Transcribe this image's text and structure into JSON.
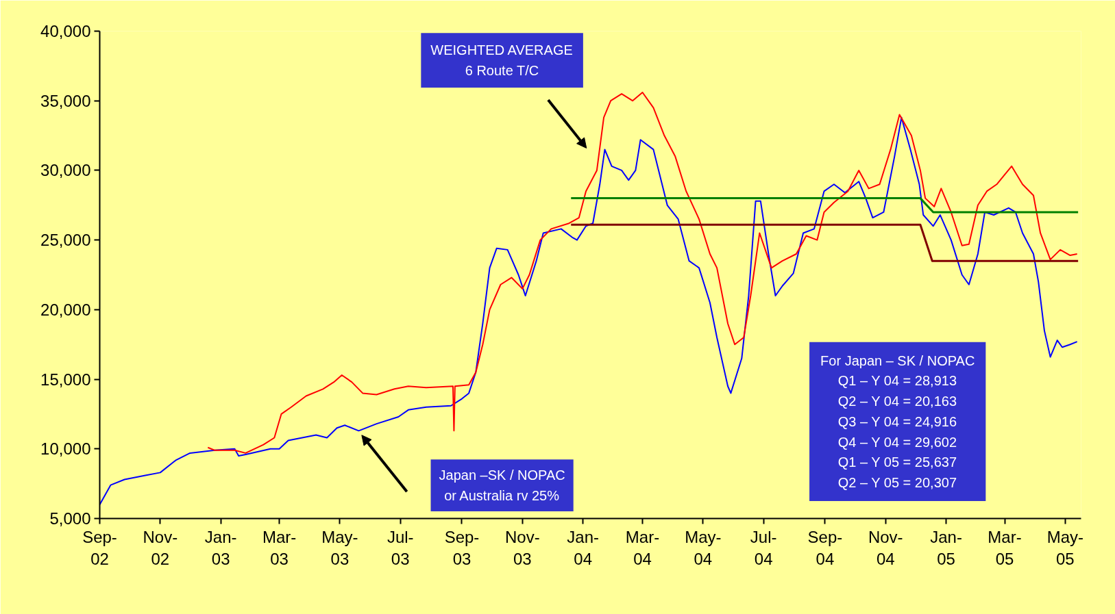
{
  "chart_data": {
    "type": "line",
    "xlim": [
      "2002-09-01",
      "2005-05-17"
    ],
    "ylim": [
      5000,
      40000
    ],
    "xticks": [
      {
        "value": "2002-09-01",
        "label": "Sep-\n02"
      },
      {
        "value": "2002-11-01",
        "label": "Nov-\n02"
      },
      {
        "value": "2003-01-01",
        "label": "Jan-\n03"
      },
      {
        "value": "2003-03-01",
        "label": "Mar-\n03"
      },
      {
        "value": "2003-05-01",
        "label": "May-\n03"
      },
      {
        "value": "2003-07-01",
        "label": "Jul-\n03"
      },
      {
        "value": "2003-09-01",
        "label": "Sep-\n03"
      },
      {
        "value": "2003-11-01",
        "label": "Nov-\n03"
      },
      {
        "value": "2004-01-01",
        "label": "Jan-\n04"
      },
      {
        "value": "2004-03-01",
        "label": "Mar-\n04"
      },
      {
        "value": "2004-05-01",
        "label": "May-\n04"
      },
      {
        "value": "2004-07-01",
        "label": "Jul-\n04"
      },
      {
        "value": "2004-09-01",
        "label": "Sep-\n04"
      },
      {
        "value": "2004-11-01",
        "label": "Nov-\n04"
      },
      {
        "value": "2005-01-01",
        "label": "Jan-\n05"
      },
      {
        "value": "2005-03-01",
        "label": "Mar-\n05"
      },
      {
        "value": "2005-05-01",
        "label": "May-\n05"
      }
    ],
    "yticks": [
      {
        "value": 5000,
        "label": "5,000"
      },
      {
        "value": 10000,
        "label": "10,000"
      },
      {
        "value": 15000,
        "label": "15,000"
      },
      {
        "value": 20000,
        "label": "20,000"
      },
      {
        "value": 25000,
        "label": "25,000"
      },
      {
        "value": 30000,
        "label": "30,000"
      },
      {
        "value": 35000,
        "label": "35,000"
      },
      {
        "value": 40000,
        "label": "40,000"
      }
    ],
    "grid": false,
    "marker": "none",
    "line_style": "solid",
    "series": [
      {
        "color": "#0000ff",
        "x": [
          "2002-09-01",
          "2002-09-12",
          "2002-09-26",
          "2002-10-17",
          "2002-11-01",
          "2002-11-17",
          "2002-12-01",
          "2002-12-26",
          "2003-01-15",
          "2003-01-19",
          "2003-01-26",
          "2003-02-20",
          "2003-03-01",
          "2003-03-10",
          "2003-03-24",
          "2003-04-07",
          "2003-04-18",
          "2003-04-28",
          "2003-05-06",
          "2003-05-20",
          "2003-06-07",
          "2003-06-29",
          "2003-07-09",
          "2003-07-27",
          "2003-08-21",
          "2003-09-01",
          "2003-09-08",
          "2003-09-15",
          "2003-09-22",
          "2003-09-29",
          "2003-10-06",
          "2003-10-17",
          "2003-10-28",
          "2003-11-04",
          "2003-11-15",
          "2003-11-22",
          "2003-12-10",
          "2003-12-21",
          "2003-12-26",
          "2004-01-04",
          "2004-01-11",
          "2004-01-18",
          "2004-01-23",
          "2004-01-30",
          "2004-02-09",
          "2004-02-16",
          "2004-02-23",
          "2004-02-28",
          "2004-03-12",
          "2004-03-26",
          "2004-04-06",
          "2004-04-17",
          "2004-04-27",
          "2004-05-08",
          "2004-05-15",
          "2004-05-26",
          "2004-05-29",
          "2004-06-09",
          "2004-06-16",
          "2004-06-23",
          "2004-06-28",
          "2004-07-06",
          "2004-07-13",
          "2004-07-20",
          "2004-07-31",
          "2004-08-10",
          "2004-08-21",
          "2004-08-31",
          "2004-09-10",
          "2004-09-21",
          "2004-10-05",
          "2004-10-12",
          "2004-10-19",
          "2004-10-30",
          "2004-11-10",
          "2004-11-17",
          "2004-11-26",
          "2004-12-05",
          "2004-12-09",
          "2004-12-19",
          "2004-12-26",
          "2005-01-06",
          "2005-01-17",
          "2005-01-24",
          "2005-02-02",
          "2005-02-09",
          "2005-02-18",
          "2005-03-05",
          "2005-03-12",
          "2005-03-19",
          "2005-03-30",
          "2005-04-04",
          "2005-04-10",
          "2005-04-16",
          "2005-04-23",
          "2005-04-28",
          "2005-05-06",
          "2005-05-13"
        ],
        "values": [
          6000,
          7400,
          7800,
          8100,
          8300,
          9200,
          9700,
          9900,
          10000,
          9500,
          9600,
          10000,
          10000,
          10600,
          10800,
          11000,
          10800,
          11500,
          11700,
          11300,
          11800,
          12300,
          12800,
          13000,
          13100,
          13600,
          14000,
          15500,
          19000,
          23000,
          24400,
          24300,
          22500,
          21000,
          23500,
          25500,
          25800,
          25200,
          25000,
          26000,
          26200,
          29000,
          31500,
          30300,
          30000,
          29300,
          30000,
          32200,
          31500,
          27500,
          26500,
          23500,
          23000,
          20500,
          18000,
          14500,
          14000,
          16500,
          21000,
          27800,
          27800,
          24000,
          21000,
          21700,
          22600,
          25500,
          25800,
          28500,
          29000,
          28400,
          29200,
          28000,
          26600,
          27000,
          31000,
          33800,
          31500,
          29000,
          26800,
          26000,
          26800,
          25000,
          22500,
          21800,
          24000,
          27000,
          26800,
          27300,
          27000,
          25500,
          24000,
          22000,
          18500,
          16600,
          17800,
          17300,
          17500,
          17700
        ]
      },
      {
        "color": "#ff0000",
        "x": [
          "2002-12-19",
          "2002-12-26",
          "2003-01-15",
          "2003-01-26",
          "2003-02-13",
          "2003-02-24",
          "2003-03-03",
          "2003-03-13",
          "2003-03-28",
          "2003-04-14",
          "2003-04-25",
          "2003-05-03",
          "2003-05-13",
          "2003-05-24",
          "2003-06-07",
          "2003-06-25",
          "2003-07-09",
          "2003-07-27",
          "2003-08-23",
          "2003-08-24",
          "2003-08-25",
          "2003-09-08",
          "2003-09-15",
          "2003-09-22",
          "2003-09-29",
          "2003-10-10",
          "2003-10-21",
          "2003-11-01",
          "2003-11-08",
          "2003-11-19",
          "2003-11-30",
          "2003-12-18",
          "2003-12-28",
          "2004-01-04",
          "2004-01-15",
          "2004-01-22",
          "2004-01-29",
          "2004-02-09",
          "2004-02-20",
          "2004-03-01",
          "2004-03-12",
          "2004-03-23",
          "2004-04-03",
          "2004-04-14",
          "2004-04-27",
          "2004-05-08",
          "2004-05-15",
          "2004-05-26",
          "2004-06-02",
          "2004-06-11",
          "2004-06-18",
          "2004-06-27",
          "2004-07-09",
          "2004-07-20",
          "2004-08-03",
          "2004-08-13",
          "2004-08-24",
          "2004-08-31",
          "2004-09-10",
          "2004-09-24",
          "2004-10-05",
          "2004-10-15",
          "2004-10-26",
          "2004-11-06",
          "2004-11-15",
          "2004-11-27",
          "2004-12-06",
          "2004-12-11",
          "2004-12-20",
          "2004-12-27",
          "2005-01-06",
          "2005-01-17",
          "2005-01-24",
          "2005-02-02",
          "2005-02-11",
          "2005-02-21",
          "2005-03-08",
          "2005-03-19",
          "2005-03-30",
          "2005-04-06",
          "2005-04-16",
          "2005-04-26",
          "2005-05-06",
          "2005-05-13"
        ],
        "values": [
          10100,
          9900,
          9900,
          9700,
          10300,
          10800,
          12500,
          13000,
          13800,
          14300,
          14800,
          15300,
          14800,
          14000,
          13900,
          14300,
          14500,
          14400,
          14500,
          11300,
          14500,
          14600,
          15500,
          17500,
          20000,
          21800,
          22300,
          21500,
          22500,
          25000,
          25800,
          26200,
          26600,
          28500,
          30000,
          33800,
          35000,
          35500,
          35000,
          35600,
          34500,
          32500,
          31000,
          28500,
          26500,
          24000,
          23000,
          19000,
          17500,
          18000,
          21000,
          25500,
          23000,
          23500,
          24000,
          25300,
          25000,
          27000,
          27700,
          28500,
          30000,
          28700,
          29000,
          31500,
          34000,
          32500,
          30000,
          28000,
          27400,
          28700,
          27000,
          24600,
          24700,
          27500,
          28500,
          29000,
          30300,
          29000,
          28200,
          25500,
          23600,
          24300,
          23900,
          24000
        ]
      },
      {
        "color": "#008000",
        "x": [
          "2003-12-20",
          "2004-12-06",
          "2004-12-19",
          "2005-05-14"
        ],
        "values": [
          28000,
          28000,
          27000,
          27000
        ]
      },
      {
        "color": "#800000",
        "x": [
          "2003-12-20",
          "2004-12-06",
          "2004-12-18",
          "2005-05-14"
        ],
        "values": [
          26100,
          26100,
          23500,
          23500
        ]
      }
    ],
    "annotations": [
      "WEIGHTED AVERAGE\n6 Route T/C",
      "Japan –SK / NOPAC\nor Australia rv 25%",
      "For Japan – SK / NOPAC\nQ1 – Y 04 = 28,913\nQ2 – Y 04 = 20,163\nQ3 – Y 04 = 24,916\nQ4 – Y 04 = 29,602\nQ1 – Y 05 = 25,637\nQ2 – Y 05 = 20,307"
    ]
  }
}
